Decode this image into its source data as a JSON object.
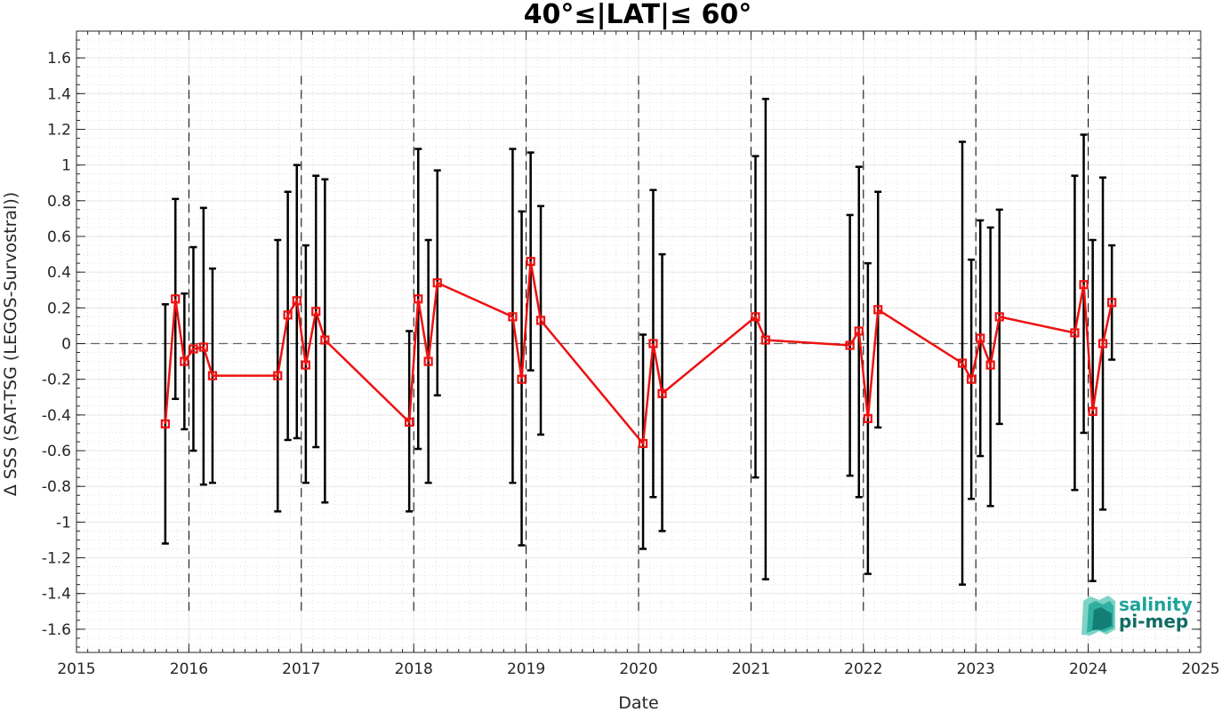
{
  "chart_data": {
    "type": "line",
    "title": "40°≤|LAT|≤ 60°",
    "xlabel": "Date",
    "ylabel": "Δ SSS (SAT-TSG (LEGOS-Survostral))",
    "xlim": [
      2015,
      2025
    ],
    "ylim": [
      -1.73,
      1.75
    ],
    "x_ticks": [
      2015,
      2016,
      2017,
      2018,
      2019,
      2020,
      2021,
      2022,
      2023,
      2024,
      2025
    ],
    "y_ticks": [
      -1.6,
      -1.4,
      -1.2,
      -1,
      -0.8,
      -0.6,
      -0.4,
      -0.2,
      0,
      0.2,
      0.4,
      0.6,
      0.8,
      1,
      1.2,
      1.4,
      1.6
    ],
    "year_boundaries": [
      2016,
      2017,
      2018,
      2019,
      2020,
      2021,
      2022,
      2023,
      2024
    ],
    "reference_line": 0,
    "grid": "minor dotted",
    "series": [
      {
        "color": "#ee1111",
        "error_bar_color": "#000000",
        "x": [
          2015.79,
          2015.88,
          2015.96,
          2016.04,
          2016.13,
          2016.21,
          2016.79,
          2016.88,
          2016.96,
          2017.04,
          2017.13,
          2017.21,
          2017.96,
          2018.04,
          2018.13,
          2018.21,
          2018.88,
          2018.96,
          2019.04,
          2019.13,
          2020.04,
          2020.13,
          2020.21,
          2021.04,
          2021.13,
          2021.88,
          2021.96,
          2022.04,
          2022.13,
          2022.88,
          2022.96,
          2023.04,
          2023.13,
          2023.21,
          2023.88,
          2023.96,
          2024.04,
          2024.13,
          2024.21
        ],
        "y": [
          -0.45,
          0.25,
          -0.1,
          -0.03,
          -0.02,
          -0.18,
          -0.18,
          0.16,
          0.24,
          -0.12,
          0.18,
          0.02,
          -0.44,
          0.25,
          -0.1,
          0.34,
          0.15,
          -0.2,
          0.46,
          0.13,
          -0.56,
          0.0,
          -0.28,
          0.15,
          0.02,
          -0.01,
          0.07,
          -0.42,
          0.19,
          -0.11,
          -0.2,
          0.03,
          -0.12,
          0.15,
          0.06,
          0.33,
          -0.38,
          0.0,
          0.23
        ],
        "err_low": [
          -1.12,
          -0.31,
          -0.48,
          -0.6,
          -0.79,
          -0.78,
          -0.94,
          -0.54,
          -0.53,
          -0.78,
          -0.58,
          -0.89,
          -0.94,
          -0.59,
          -0.78,
          -0.29,
          -0.78,
          -1.13,
          -0.15,
          -0.51,
          -1.15,
          -0.86,
          -1.05,
          -0.75,
          -1.32,
          -0.74,
          -0.86,
          -1.29,
          -0.47,
          -1.35,
          -0.87,
          -0.63,
          -0.91,
          -0.45,
          -0.82,
          -0.5,
          -1.33,
          -0.93,
          -0.09
        ],
        "err_high": [
          0.22,
          0.81,
          0.28,
          0.54,
          0.76,
          0.42,
          0.58,
          0.85,
          1.0,
          0.55,
          0.94,
          0.92,
          0.07,
          1.09,
          0.58,
          0.97,
          1.09,
          0.74,
          1.07,
          0.77,
          0.05,
          0.86,
          0.5,
          1.05,
          1.37,
          0.72,
          0.99,
          0.45,
          0.85,
          1.13,
          0.47,
          0.69,
          0.65,
          0.75,
          0.94,
          1.17,
          0.58,
          0.93,
          0.55
        ]
      }
    ]
  },
  "logo": {
    "line1": "salinity",
    "line2": "pi-mep",
    "color1": "#1aa39a",
    "color2": "#0f6d63"
  }
}
